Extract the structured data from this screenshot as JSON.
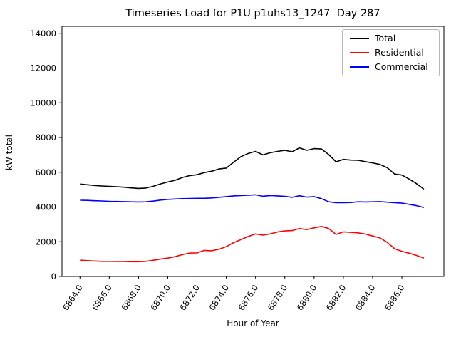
{
  "chart_data": {
    "type": "line",
    "title": "Timeseries Load for P1U p1uhs13_1247  Day 287",
    "xlabel": "Hour of Year",
    "ylabel": "kW total",
    "grid": false,
    "legend_position": "upper right",
    "xlim": [
      6862.77,
      6888.87
    ],
    "ylim": [
      0,
      14400
    ],
    "yticks": {
      "values": [
        0,
        2000,
        4000,
        6000,
        8000,
        10000,
        12000,
        14000
      ],
      "labels": [
        "0",
        "2000",
        "4000",
        "6000",
        "8000",
        "10000",
        "12000",
        "14000"
      ]
    },
    "xticks": {
      "values": [
        6864,
        6866,
        6868,
        6870,
        6872,
        6874,
        6876,
        6878,
        6880,
        6882,
        6884,
        6886
      ],
      "labels": [
        "6864.0",
        "6866.0",
        "6868.0",
        "6870.0",
        "6872.0",
        "6874.0",
        "6876.0",
        "6878.0",
        "6880.0",
        "6882.0",
        "6884.0",
        "6886.0"
      ]
    },
    "x": [
      6864.0,
      6864.5,
      6865.0,
      6865.5,
      6866.0,
      6866.5,
      6867.0,
      6867.5,
      6868.0,
      6868.5,
      6869.0,
      6869.5,
      6870.0,
      6870.5,
      6871.0,
      6871.5,
      6872.0,
      6872.5,
      6873.0,
      6873.5,
      6874.0,
      6874.5,
      6875.0,
      6875.5,
      6876.0,
      6876.5,
      6877.0,
      6877.5,
      6878.0,
      6878.5,
      6879.0,
      6879.5,
      6880.0,
      6880.5,
      6881.0,
      6881.5,
      6882.0,
      6882.5,
      6883.0,
      6883.5,
      6884.0,
      6884.5,
      6885.0,
      6885.5,
      6886.0,
      6886.5,
      6887.0,
      6887.5
    ],
    "series": [
      {
        "name": "Total",
        "color": "#000000",
        "values": [
          5320,
          5280,
          5240,
          5210,
          5190,
          5170,
          5140,
          5100,
          5070,
          5090,
          5190,
          5330,
          5440,
          5540,
          5700,
          5810,
          5860,
          5980,
          6060,
          6190,
          6240,
          6580,
          6900,
          7080,
          7200,
          7000,
          7120,
          7200,
          7260,
          7180,
          7400,
          7260,
          7360,
          7340,
          7020,
          6600,
          6740,
          6700,
          6690,
          6610,
          6540,
          6450,
          6260,
          5900,
          5840,
          5610,
          5340,
          5030
        ]
      },
      {
        "name": "Residential",
        "color": "#ff0000",
        "values": [
          940,
          910,
          890,
          870,
          870,
          860,
          860,
          850,
          850,
          870,
          930,
          1000,
          1060,
          1140,
          1260,
          1350,
          1360,
          1500,
          1480,
          1570,
          1720,
          1950,
          2120,
          2300,
          2450,
          2380,
          2450,
          2560,
          2620,
          2640,
          2760,
          2700,
          2800,
          2880,
          2760,
          2420,
          2570,
          2540,
          2510,
          2440,
          2330,
          2220,
          1960,
          1600,
          1450,
          1340,
          1210,
          1060
        ]
      },
      {
        "name": "Commercial",
        "color": "#0000ff",
        "values": [
          4390,
          4380,
          4360,
          4350,
          4330,
          4320,
          4310,
          4300,
          4290,
          4300,
          4340,
          4400,
          4440,
          4460,
          4480,
          4490,
          4500,
          4500,
          4520,
          4560,
          4600,
          4640,
          4660,
          4680,
          4700,
          4620,
          4660,
          4640,
          4610,
          4560,
          4650,
          4570,
          4600,
          4480,
          4300,
          4250,
          4250,
          4260,
          4300,
          4290,
          4300,
          4310,
          4280,
          4250,
          4220,
          4150,
          4080,
          3970
        ]
      }
    ]
  }
}
